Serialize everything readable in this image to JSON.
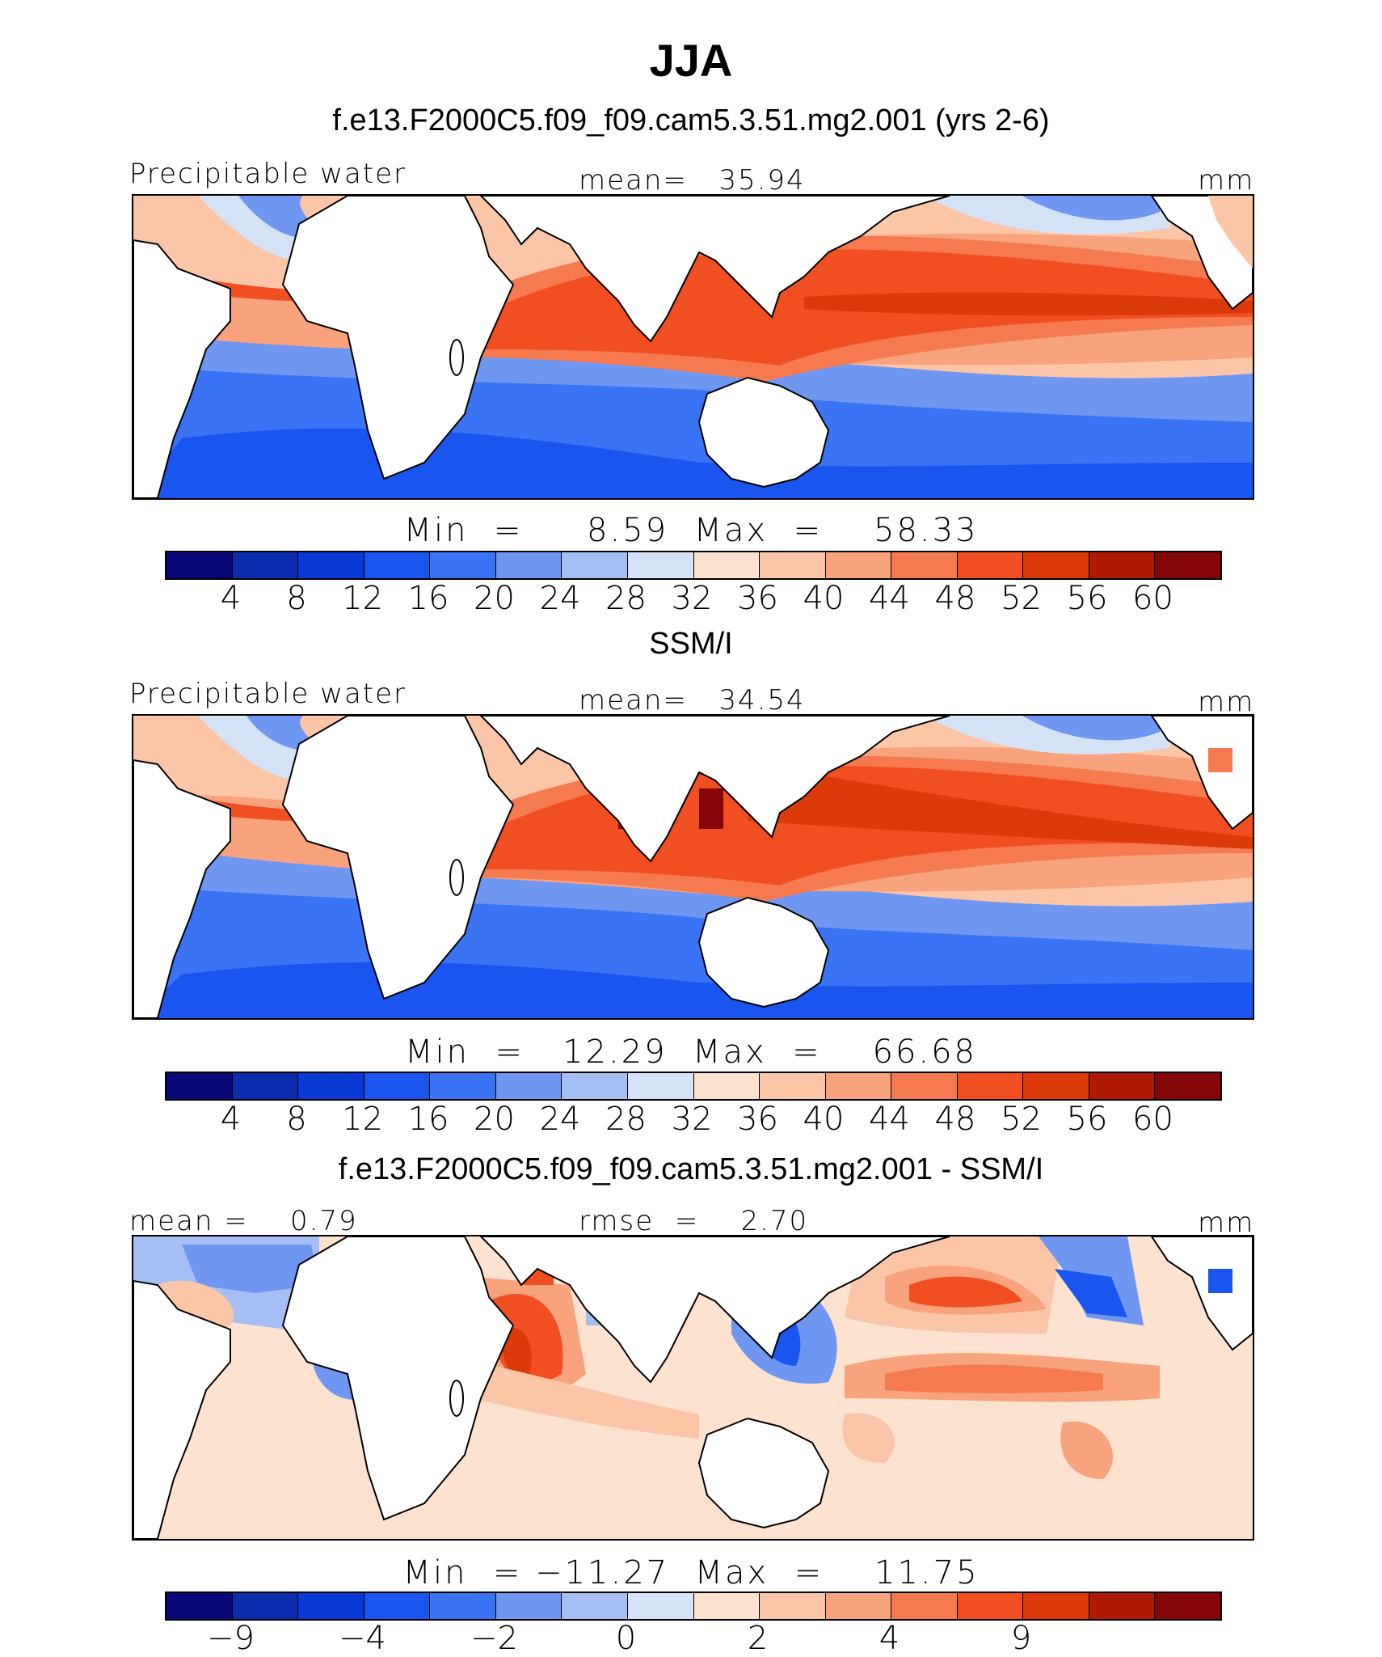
{
  "title": "JJA",
  "panels": [
    {
      "title": "f.e13.F2000C5.f09_f09.cam5.3.51.mg2.001 (yrs 2-6)",
      "left_label": "Precipitable water",
      "center_label": "mean=   35.94",
      "right_label": "mm",
      "minmax": "Min  =     8.59  Max  =    58.33",
      "colorbar": {
        "colors": [
          "#08087a",
          "#0a2dae",
          "#0a39d6",
          "#1a55f0",
          "#3a73f4",
          "#6f96f1",
          "#a5bff5",
          "#d5e3f8",
          "#fde2d0",
          "#fbc6a8",
          "#f8a27e",
          "#f57a4f",
          "#f14e22",
          "#dd3a0c",
          "#ae1a06",
          "#850606"
        ],
        "ticks": [
          "4",
          "8",
          "12",
          "16",
          "20",
          "24",
          "28",
          "32",
          "36",
          "40",
          "44",
          "48",
          "52",
          "56",
          "60"
        ]
      }
    },
    {
      "title": "SSM/I",
      "left_label": "Precipitable water",
      "center_label": "mean=   34.54",
      "right_label": "mm",
      "minmax": "Min  =   12.29  Max  =    66.68",
      "colorbar": {
        "colors": [
          "#08087a",
          "#0a2dae",
          "#0a39d6",
          "#1a55f0",
          "#3a73f4",
          "#6f96f1",
          "#a5bff5",
          "#d5e3f8",
          "#fde2d0",
          "#fbc6a8",
          "#f8a27e",
          "#f57a4f",
          "#f14e22",
          "#dd3a0c",
          "#ae1a06",
          "#850606"
        ],
        "ticks": [
          "4",
          "8",
          "12",
          "16",
          "20",
          "24",
          "28",
          "32",
          "36",
          "40",
          "44",
          "48",
          "52",
          "56",
          "60"
        ]
      }
    },
    {
      "title": "f.e13.F2000C5.f09_f09.cam5.3.51.mg2.001 - SSM/I",
      "left_label": "mean =    0.79",
      "center_label": "rmse  =    2.70",
      "right_label": "mm",
      "minmax": "Min  = −11.27  Max  =    11.75",
      "colorbar": {
        "colors": [
          "#08087a",
          "#0a2dae",
          "#0a39d6",
          "#1a55f0",
          "#3a73f4",
          "#6f96f1",
          "#a5bff5",
          "#d5e3f8",
          "#fde2d0",
          "#fbc6a8",
          "#f8a27e",
          "#f57a4f",
          "#f14e22",
          "#dd3a0c",
          "#ae1a06",
          "#850606"
        ],
        "ticks": [
          "−9",
          "−4",
          "−2",
          "0",
          "2",
          "4",
          "9"
        ]
      }
    }
  ]
}
